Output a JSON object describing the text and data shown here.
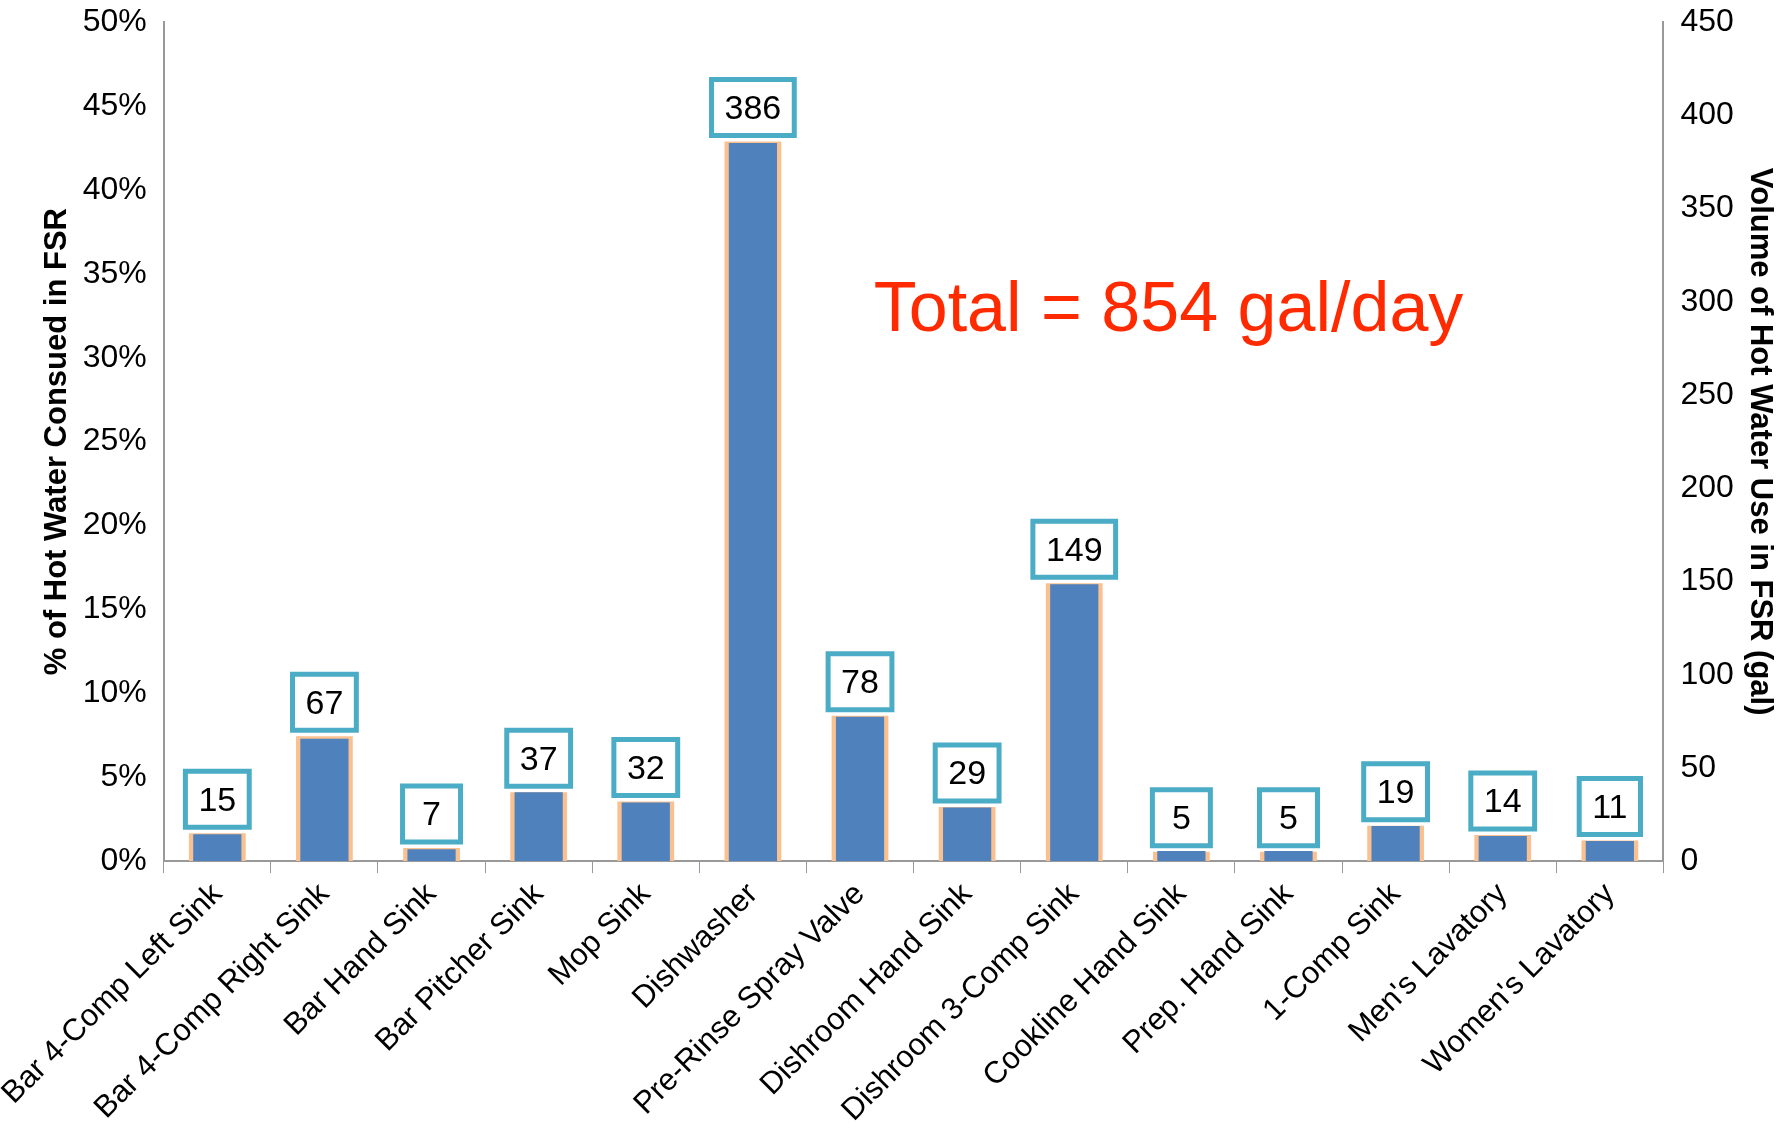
{
  "chart_data": {
    "type": "bar",
    "ylabel": "% of Hot Water Consued in FSR",
    "y2label": "Volume of Hot Water Use in FSR (gal)",
    "categories": [
      "Bar 4-Comp Left Sink",
      "Bar 4-Comp Right Sink",
      "Bar Hand Sink",
      "Bar Pitcher Sink",
      "Mop Sink",
      "Dishwasher",
      "Pre-Rinse Spray Valve",
      "Dishroom Hand Sink",
      "Dishroom 3-Comp Sink",
      "Cookline Hand Sink",
      "Prep. Hand Sink",
      "1-Comp Sink",
      "Men's Lavatory",
      "Women's Lavatory"
    ],
    "series": [
      {
        "color": "#4f81bd",
        "values": [
          1.6,
          7.3,
          0.7,
          4.1,
          3.5,
          42.8,
          8.6,
          3.2,
          16.5,
          0.6,
          0.6,
          2.1,
          1.5,
          1.2
        ]
      },
      {
        "color": "#fac090",
        "axis": "y2",
        "values": [
          15,
          67,
          7,
          37,
          32,
          386,
          78,
          29,
          149,
          5,
          5,
          19,
          14,
          11
        ],
        "value_labels": [
          "15",
          "67",
          "7",
          "37",
          "32",
          "386",
          "78",
          "29",
          "149",
          "5",
          "5",
          "19",
          "14",
          "11"
        ]
      }
    ],
    "ylim": [
      0,
      50
    ],
    "yticks": [
      {
        "value": 0,
        "label": "0%"
      },
      {
        "value": 5,
        "label": "5%"
      },
      {
        "value": 10,
        "label": "10%"
      },
      {
        "value": 15,
        "label": "15%"
      },
      {
        "value": 20,
        "label": "20%"
      },
      {
        "value": 25,
        "label": "25%"
      },
      {
        "value": 30,
        "label": "30%"
      },
      {
        "value": 35,
        "label": "35%"
      },
      {
        "value": 40,
        "label": "40%"
      },
      {
        "value": 45,
        "label": "45%"
      },
      {
        "value": 50,
        "label": "50%"
      }
    ],
    "y2lim": [
      0,
      450
    ],
    "y2ticks": [
      0,
      50,
      100,
      150,
      200,
      250,
      300,
      350,
      400,
      450
    ],
    "annotations": [
      "Total = 854 gal/day"
    ],
    "legend": false,
    "grid": false
  }
}
